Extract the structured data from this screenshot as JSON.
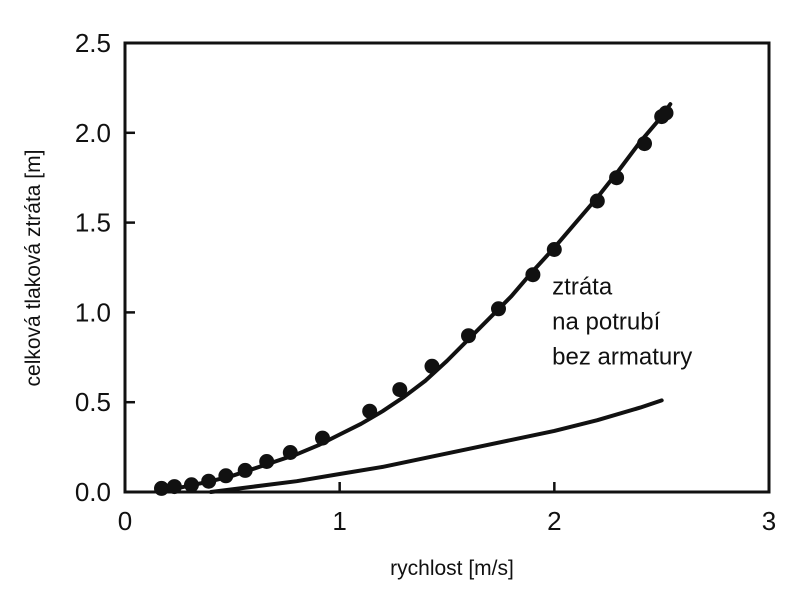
{
  "chart_data": {
    "type": "scatter",
    "title": "",
    "xlabel": "rychlost [m/s]",
    "ylabel": "celková tlaková ztráta [m]",
    "xlim": [
      0,
      3
    ],
    "ylim": [
      0,
      2.5
    ],
    "x_ticks": [
      0,
      1,
      2,
      3
    ],
    "x_tick_labels": [
      "0",
      "1",
      "2",
      "3"
    ],
    "y_ticks": [
      0,
      0.5,
      1.0,
      1.5,
      2.0,
      2.5
    ],
    "y_tick_labels": [
      "0.0",
      "0.5",
      "1.0",
      "1.5",
      "2.0",
      "2.5"
    ],
    "grid": false,
    "legend": "none",
    "colors": {
      "ink": "#111111",
      "background": "#ffffff"
    },
    "series": [
      {
        "kind": "points",
        "x": [
          0.17,
          0.23,
          0.31,
          0.39,
          0.47,
          0.56,
          0.66,
          0.77,
          0.92,
          1.14,
          1.28,
          1.43,
          1.6,
          1.74,
          1.9,
          2.0,
          2.2,
          2.29,
          2.42,
          2.5,
          2.52
        ],
        "y": [
          0.02,
          0.03,
          0.04,
          0.06,
          0.09,
          0.12,
          0.17,
          0.22,
          0.3,
          0.45,
          0.57,
          0.7,
          0.87,
          1.02,
          1.21,
          1.35,
          1.62,
          1.75,
          1.94,
          2.09,
          2.11
        ]
      },
      {
        "kind": "fit",
        "x": [
          0.2,
          0.3,
          0.4,
          0.5,
          0.6,
          0.7,
          0.8,
          0.9,
          1.0,
          1.1,
          1.2,
          1.3,
          1.4,
          1.5,
          1.6,
          1.7,
          1.8,
          1.9,
          2.0,
          2.1,
          2.2,
          2.3,
          2.4,
          2.5,
          2.54
        ],
        "y": [
          0.01,
          0.035,
          0.06,
          0.09,
          0.13,
          0.17,
          0.21,
          0.26,
          0.32,
          0.38,
          0.45,
          0.53,
          0.62,
          0.73,
          0.85,
          0.97,
          1.09,
          1.23,
          1.36,
          1.5,
          1.64,
          1.79,
          1.95,
          2.09,
          2.16
        ]
      },
      {
        "kind": "line",
        "x": [
          0.4,
          0.6,
          0.8,
          1.0,
          1.2,
          1.4,
          1.6,
          1.8,
          2.0,
          2.2,
          2.4,
          2.5
        ],
        "y": [
          0.0,
          0.03,
          0.06,
          0.1,
          0.14,
          0.19,
          0.24,
          0.29,
          0.34,
          0.4,
          0.47,
          0.51
        ]
      }
    ],
    "annotation": {
      "lines": [
        "ztráta",
        "na potrubí",
        "bez armatury"
      ],
      "x": 1.99,
      "y": 1.1
    }
  }
}
